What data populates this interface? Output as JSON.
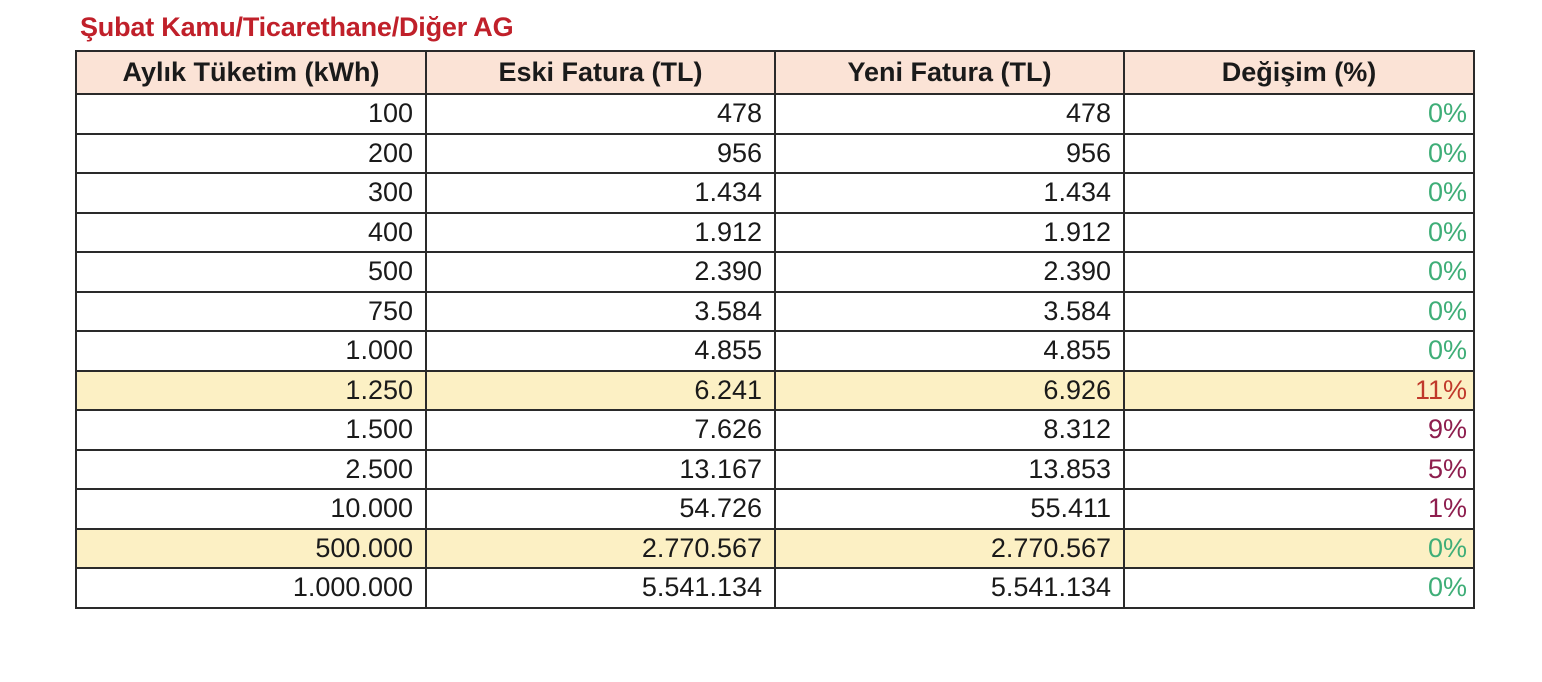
{
  "title": "Şubat Kamu/Ticarethane/Diğer AG",
  "headers": [
    "Aylık Tüketim (kWh)",
    "Eski Fatura (TL)",
    "Yeni Fatura (TL)",
    "Değişim (%)"
  ],
  "colors": {
    "title": "#c0202a",
    "header_bg": "#fbe3d6",
    "highlight_bg": "#fcf0c4",
    "change_zero": "#3fae78",
    "change_increase_high": "#c0392b",
    "change_increase": "#8e1e4e"
  },
  "rows": [
    {
      "consumption": "100",
      "old_bill": "478",
      "new_bill": "478",
      "change": "0%",
      "change_color": "#3fae78",
      "highlight": false
    },
    {
      "consumption": "200",
      "old_bill": "956",
      "new_bill": "956",
      "change": "0%",
      "change_color": "#3fae78",
      "highlight": false
    },
    {
      "consumption": "300",
      "old_bill": "1.434",
      "new_bill": "1.434",
      "change": "0%",
      "change_color": "#3fae78",
      "highlight": false
    },
    {
      "consumption": "400",
      "old_bill": "1.912",
      "new_bill": "1.912",
      "change": "0%",
      "change_color": "#3fae78",
      "highlight": false
    },
    {
      "consumption": "500",
      "old_bill": "2.390",
      "new_bill": "2.390",
      "change": "0%",
      "change_color": "#3fae78",
      "highlight": false
    },
    {
      "consumption": "750",
      "old_bill": "3.584",
      "new_bill": "3.584",
      "change": "0%",
      "change_color": "#3fae78",
      "highlight": false
    },
    {
      "consumption": "1.000",
      "old_bill": "4.855",
      "new_bill": "4.855",
      "change": "0%",
      "change_color": "#3fae78",
      "highlight": false
    },
    {
      "consumption": "1.250",
      "old_bill": "6.241",
      "new_bill": "6.926",
      "change": "11%",
      "change_color": "#c0392b",
      "highlight": true
    },
    {
      "consumption": "1.500",
      "old_bill": "7.626",
      "new_bill": "8.312",
      "change": "9%",
      "change_color": "#8e1e4e",
      "highlight": false
    },
    {
      "consumption": "2.500",
      "old_bill": "13.167",
      "new_bill": "13.853",
      "change": "5%",
      "change_color": "#8e1e4e",
      "highlight": false
    },
    {
      "consumption": "10.000",
      "old_bill": "54.726",
      "new_bill": "55.411",
      "change": "1%",
      "change_color": "#8e1e4e",
      "highlight": false
    },
    {
      "consumption": "500.000",
      "old_bill": "2.770.567",
      "new_bill": "2.770.567",
      "change": "0%",
      "change_color": "#3fae78",
      "highlight": true
    },
    {
      "consumption": "1.000.000",
      "old_bill": "5.541.134",
      "new_bill": "5.541.134",
      "change": "0%",
      "change_color": "#3fae78",
      "highlight": false
    }
  ]
}
